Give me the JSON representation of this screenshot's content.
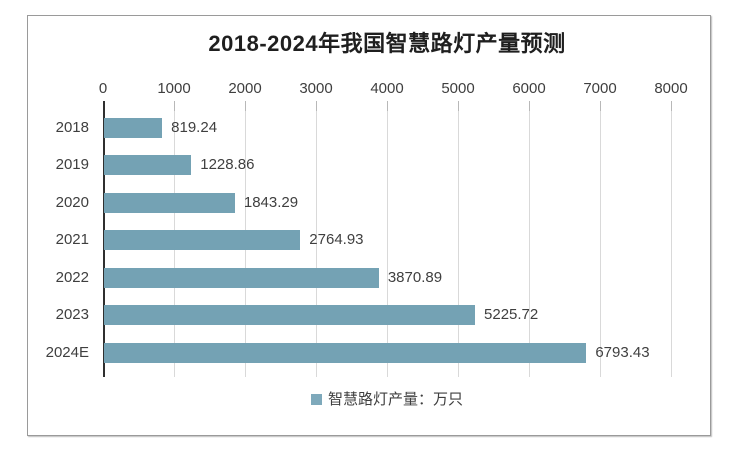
{
  "chart_data": {
    "type": "bar",
    "orientation": "horizontal",
    "title": "2018-2024年我国智慧路灯产量预测",
    "categories": [
      "2018",
      "2019",
      "2020",
      "2021",
      "2022",
      "2023",
      "2024E"
    ],
    "values": [
      819.24,
      1228.86,
      1843.29,
      2764.93,
      3870.89,
      5225.72,
      6793.43
    ],
    "value_labels": [
      "819.24",
      "1228.86",
      "1843.29",
      "2764.93",
      "3870.89",
      "5225.72",
      "6793.43"
    ],
    "xlim": [
      0,
      8000
    ],
    "x_ticks": [
      0,
      1000,
      2000,
      3000,
      4000,
      5000,
      6000,
      7000,
      8000
    ],
    "grid": true,
    "legend_position": "bottom",
    "legend": [
      "智慧路灯产量：万只"
    ],
    "unit": "万只"
  },
  "colors": {
    "bar": "#74a2b4",
    "legend_marker": "#7ea9bb",
    "grid": "#d9d9d9",
    "axis": "#2f2f2f",
    "text": "#3f3f3f",
    "title": "#1f1f1f",
    "border": "#9a9a9a",
    "bg": "#ffffff"
  }
}
